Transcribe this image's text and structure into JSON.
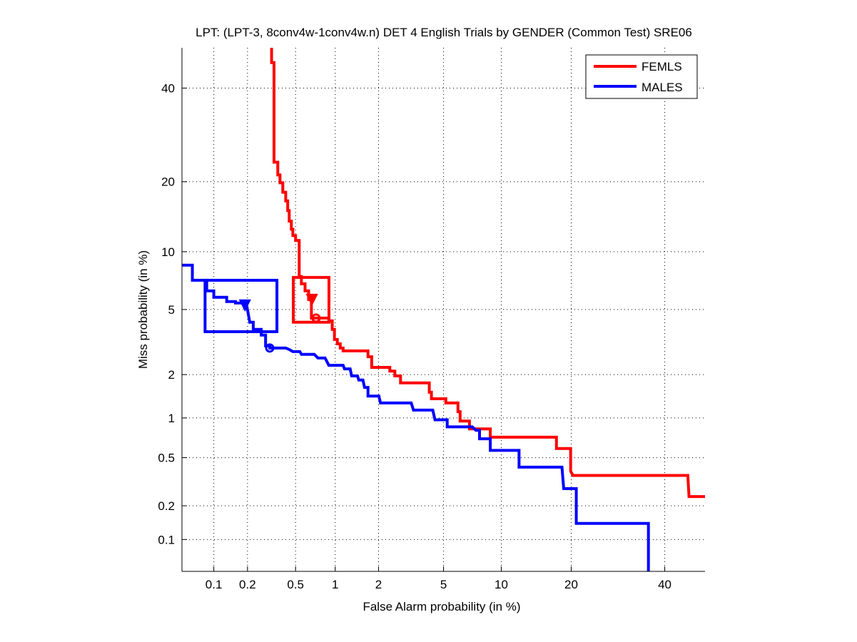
{
  "chart_data": {
    "type": "line",
    "title": "LPT: (LPT-3, 8conv4w-1conv4w.n) DET 4 English Trials by GENDER (Common Test) SRE06",
    "xlabel": "False Alarm probability (in %)",
    "ylabel": "Miss probability (in %)",
    "xscale": "normal-deviate",
    "yscale": "normal-deviate",
    "xlim": [
      0.05,
      50
    ],
    "ylim": [
      0.05,
      50
    ],
    "grid": true,
    "xticks": [
      0.1,
      0.2,
      0.5,
      1,
      2,
      5,
      10,
      20,
      40
    ],
    "xtick_labels": [
      "0.1",
      "0.2",
      "0.5",
      "1",
      "2",
      "5",
      "10",
      "20",
      "40"
    ],
    "yticks": [
      0.1,
      0.2,
      0.5,
      1,
      2,
      5,
      10,
      20,
      40
    ],
    "ytick_labels": [
      "0.1",
      "0.2",
      "0.5",
      "1",
      "2",
      "5",
      "10",
      "20",
      "40"
    ],
    "legend_position": "top-right",
    "series": [
      {
        "name": "FEMLS",
        "color": "#ff0000",
        "points": [
          [
            0.32,
            50.1
          ],
          [
            0.32,
            46.3
          ],
          [
            0.335,
            46.3
          ],
          [
            0.335,
            23.6
          ],
          [
            0.36,
            23.6
          ],
          [
            0.36,
            21.2
          ],
          [
            0.375,
            21.2
          ],
          [
            0.375,
            19.8
          ],
          [
            0.395,
            19.8
          ],
          [
            0.395,
            18.2
          ],
          [
            0.417,
            18.2
          ],
          [
            0.417,
            16.8
          ],
          [
            0.433,
            16.8
          ],
          [
            0.433,
            15.3
          ],
          [
            0.445,
            15.3
          ],
          [
            0.445,
            13.8
          ],
          [
            0.463,
            13.8
          ],
          [
            0.463,
            12.7
          ],
          [
            0.476,
            12.7
          ],
          [
            0.476,
            11.9
          ],
          [
            0.5,
            11.9
          ],
          [
            0.5,
            11.3
          ],
          [
            0.534,
            11.3
          ],
          [
            0.534,
            7.53
          ],
          [
            0.556,
            7.53
          ],
          [
            0.556,
            6.9
          ],
          [
            0.593,
            6.9
          ],
          [
            0.593,
            6.33
          ],
          [
            0.632,
            6.33
          ],
          [
            0.632,
            5.68
          ],
          [
            0.664,
            5.68
          ],
          [
            0.664,
            4.47
          ],
          [
            0.842,
            4.47
          ],
          [
            0.897,
            4.47
          ],
          [
            0.897,
            4.31
          ],
          [
            0.951,
            4.31
          ],
          [
            0.951,
            3.84
          ],
          [
            0.987,
            3.84
          ],
          [
            0.987,
            3.34
          ],
          [
            1.036,
            3.34
          ],
          [
            1.036,
            3.14
          ],
          [
            1.087,
            3.14
          ],
          [
            1.087,
            2.96
          ],
          [
            1.14,
            2.96
          ],
          [
            1.14,
            2.84
          ],
          [
            1.7,
            2.84
          ],
          [
            1.7,
            2.61
          ],
          [
            1.8,
            2.61
          ],
          [
            1.8,
            2.23
          ],
          [
            2.37,
            2.23
          ],
          [
            2.37,
            2.11
          ],
          [
            2.55,
            2.11
          ],
          [
            2.55,
            1.96
          ],
          [
            2.77,
            1.96
          ],
          [
            2.77,
            1.76
          ],
          [
            4.14,
            1.76
          ],
          [
            4.14,
            1.52
          ],
          [
            4.26,
            1.52
          ],
          [
            4.26,
            1.37
          ],
          [
            5.15,
            1.37
          ],
          [
            5.15,
            1.28
          ],
          [
            6.01,
            1.28
          ],
          [
            6.01,
            1.11
          ],
          [
            6.17,
            1.11
          ],
          [
            6.17,
            0.95
          ],
          [
            6.92,
            0.95
          ],
          [
            6.92,
            0.83
          ],
          [
            8.84,
            0.83
          ],
          [
            8.84,
            0.72
          ],
          [
            17.5,
            0.72
          ],
          [
            17.5,
            0.59
          ],
          [
            19.9,
            0.59
          ],
          [
            19.9,
            0.39
          ],
          [
            20.3,
            0.36
          ],
          [
            45.7,
            0.36
          ],
          [
            46.0,
            0.24
          ],
          [
            50.7,
            0.24
          ]
        ],
        "act_decision_box": {
          "fa": [
            0.48,
            0.9
          ],
          "miss": [
            4.23,
            7.45
          ]
        },
        "act_decision_point": [
          0.67,
          5.68
        ],
        "min_dcf_point": [
          0.72,
          4.47
        ]
      },
      {
        "name": "MALES",
        "color": "#0000ff",
        "points": [
          [
            0.05,
            8.6
          ],
          [
            0.063,
            8.6
          ],
          [
            0.063,
            7.2
          ],
          [
            0.086,
            7.2
          ],
          [
            0.086,
            6.33
          ],
          [
            0.1,
            6.33
          ],
          [
            0.1,
            5.84
          ],
          [
            0.131,
            5.84
          ],
          [
            0.131,
            5.54
          ],
          [
            0.157,
            5.54
          ],
          [
            0.157,
            5.44
          ],
          [
            0.195,
            5.44
          ],
          [
            0.203,
            4.73
          ],
          [
            0.209,
            4.23
          ],
          [
            0.224,
            4.23
          ],
          [
            0.224,
            3.84
          ],
          [
            0.262,
            3.84
          ],
          [
            0.262,
            3.55
          ],
          [
            0.285,
            3.55
          ],
          [
            0.285,
            3.05
          ],
          [
            0.309,
            3.05
          ],
          [
            0.309,
            2.96
          ],
          [
            0.417,
            2.96
          ],
          [
            0.445,
            2.9
          ],
          [
            0.476,
            2.81
          ],
          [
            0.54,
            2.81
          ],
          [
            0.556,
            2.7
          ],
          [
            0.698,
            2.7
          ],
          [
            0.745,
            2.56
          ],
          [
            0.842,
            2.56
          ],
          [
            0.897,
            2.3
          ],
          [
            1.14,
            2.3
          ],
          [
            1.167,
            2.18
          ],
          [
            1.28,
            2.18
          ],
          [
            1.31,
            1.96
          ],
          [
            1.44,
            1.96
          ],
          [
            1.47,
            1.84
          ],
          [
            1.57,
            1.84
          ],
          [
            1.61,
            1.64
          ],
          [
            1.7,
            1.64
          ],
          [
            1.7,
            1.43
          ],
          [
            2.01,
            1.43
          ],
          [
            2.06,
            1.28
          ],
          [
            3.23,
            1.28
          ],
          [
            3.33,
            1.14
          ],
          [
            4.34,
            1.14
          ],
          [
            4.47,
            0.97
          ],
          [
            5.24,
            0.97
          ],
          [
            5.24,
            0.86
          ],
          [
            6.01,
            0.86
          ],
          [
            7.16,
            0.86
          ],
          [
            7.48,
            0.81
          ],
          [
            7.8,
            0.81
          ],
          [
            7.8,
            0.7
          ],
          [
            8.84,
            0.7
          ],
          [
            8.84,
            0.57
          ],
          [
            12.1,
            0.57
          ],
          [
            12.1,
            0.42
          ],
          [
            18.4,
            0.42
          ],
          [
            18.7,
            0.28
          ],
          [
            20.9,
            0.28
          ],
          [
            20.9,
            0.14
          ],
          [
            36.1,
            0.14
          ],
          [
            36.1,
            0.05
          ]
        ],
        "act_decision_box": {
          "fa": [
            0.083,
            0.354
          ],
          "miss": [
            3.72,
            7.2
          ]
        },
        "act_decision_point": [
          0.19,
          5.29
        ],
        "min_dcf_point": [
          0.309,
          2.96
        ]
      }
    ]
  }
}
